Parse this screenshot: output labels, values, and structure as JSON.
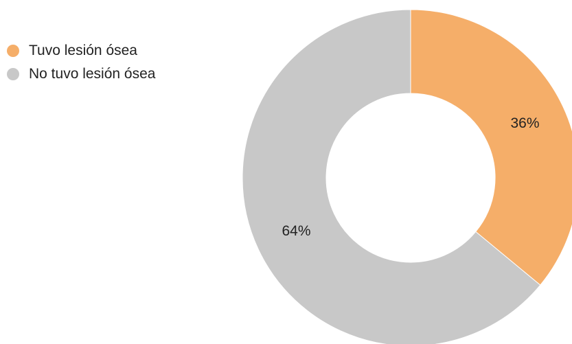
{
  "chart_data": {
    "type": "pie",
    "donut": true,
    "title": "",
    "legend_position": "top-left",
    "slices": [
      {
        "label": "Tuvo lesión ósea",
        "value": 36,
        "display": "36%",
        "color": "#f5ae69"
      },
      {
        "label": "No tuvo lesión ósea",
        "value": 64,
        "display": "64%",
        "color": "#c8c8c8"
      }
    ]
  }
}
